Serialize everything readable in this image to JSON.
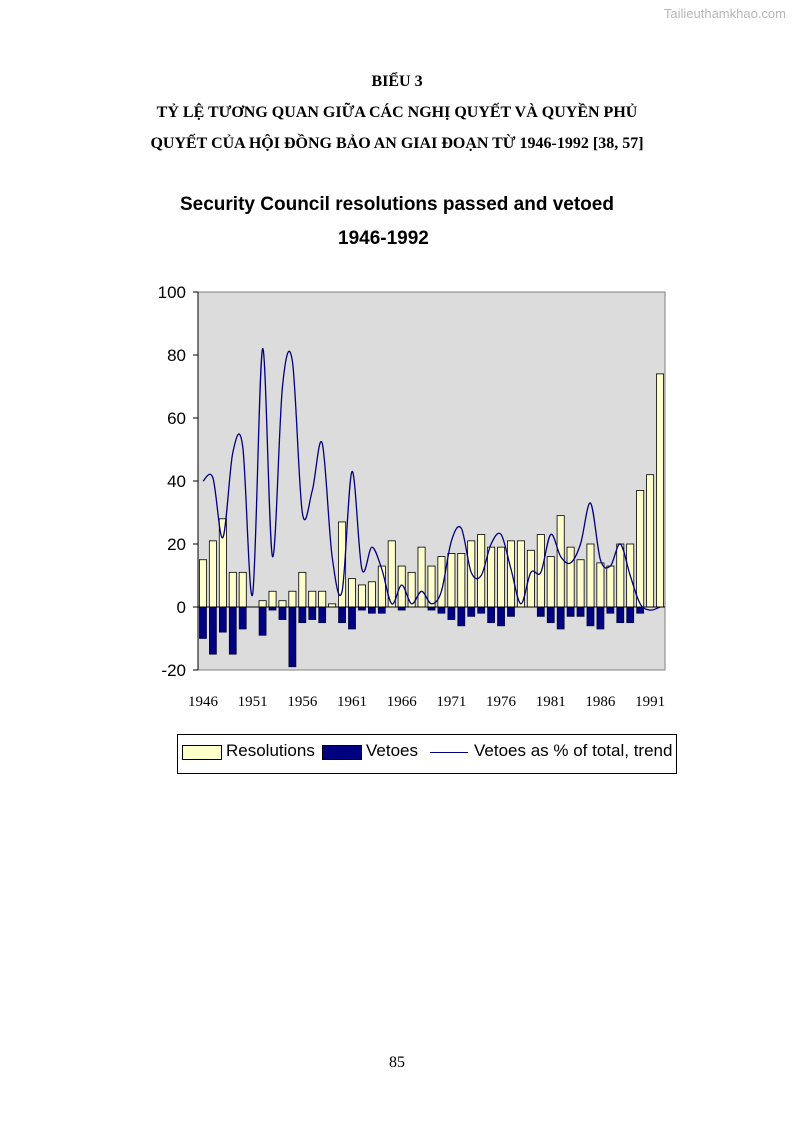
{
  "watermark": "Tailieuthamkhao.com",
  "heading": {
    "line1": "BIỂU 3",
    "line2": "TỶ LỆ TƯƠNG QUAN GIỮA CÁC NGHỊ QUYẾT VÀ QUYỀN PHỦ",
    "line3": "QUYẾT CỦA HỘI ĐỒNG BẢO AN GIAI ĐOẠN TỪ 1946-1992 [38, 57]"
  },
  "page_number": "85",
  "chart_data": {
    "type": "bar",
    "title": "Security Council resolutions passed and vetoed",
    "subtitle": "1946-1992",
    "xlabel": "",
    "ylabel": "",
    "ylim": [
      -20,
      100
    ],
    "yticks": [
      -20,
      0,
      20,
      40,
      60,
      80,
      100
    ],
    "xtick_labels": [
      "1946",
      "1951",
      "1956",
      "1961",
      "1966",
      "1971",
      "1976",
      "1981",
      "1986",
      "1991"
    ],
    "x": [
      1946,
      1947,
      1948,
      1949,
      1950,
      1951,
      1952,
      1953,
      1954,
      1955,
      1956,
      1957,
      1958,
      1959,
      1960,
      1961,
      1962,
      1963,
      1964,
      1965,
      1966,
      1967,
      1968,
      1969,
      1970,
      1971,
      1972,
      1973,
      1974,
      1975,
      1976,
      1977,
      1978,
      1979,
      1980,
      1981,
      1982,
      1983,
      1984,
      1985,
      1986,
      1987,
      1988,
      1989,
      1990,
      1991,
      1992
    ],
    "series": [
      {
        "name": "Resolutions",
        "kind": "bar",
        "color": "#ffffcc",
        "values": [
          15,
          21,
          28,
          11,
          11,
          0,
          2,
          5,
          2,
          5,
          11,
          5,
          5,
          1,
          27,
          9,
          7,
          8,
          13,
          21,
          13,
          11,
          19,
          13,
          16,
          17,
          17,
          21,
          23,
          19,
          19,
          21,
          21,
          18,
          23,
          16,
          29,
          19,
          15,
          20,
          14,
          13,
          20,
          20,
          37,
          42,
          74
        ]
      },
      {
        "name": "Vetoes",
        "kind": "bar",
        "color": "#000080",
        "values": [
          -10,
          -15,
          -8,
          -15,
          -7,
          0,
          -9,
          -1,
          -4,
          -19,
          -5,
          -4,
          -5,
          0,
          -5,
          -7,
          -1,
          -2,
          -2,
          0,
          -1,
          0,
          0,
          -1,
          -2,
          -4,
          -6,
          -3,
          -2,
          -5,
          -6,
          -3,
          0,
          0,
          -3,
          -5,
          -7,
          -3,
          -3,
          -6,
          -7,
          -2,
          -5,
          -5,
          -2,
          0,
          0
        ]
      },
      {
        "name": "Vetoes as % of total, trend",
        "kind": "line",
        "color": "#000080",
        "values": [
          40,
          41,
          22,
          49,
          51,
          4,
          82,
          16,
          70,
          78,
          30,
          37,
          52,
          16,
          5,
          43,
          12,
          19,
          12,
          1,
          7,
          1,
          5,
          1,
          5,
          21,
          25,
          11,
          10,
          20,
          23,
          12,
          1,
          11,
          11,
          23,
          16,
          14,
          20,
          33,
          15,
          13,
          20,
          10,
          1,
          -1,
          0
        ]
      }
    ],
    "legend": [
      "Resolutions",
      "Vetoes",
      "Vetoes as % of total, trend"
    ],
    "legend_placement": "bottom",
    "grid": false,
    "plot_background": "#dcdcdc"
  }
}
